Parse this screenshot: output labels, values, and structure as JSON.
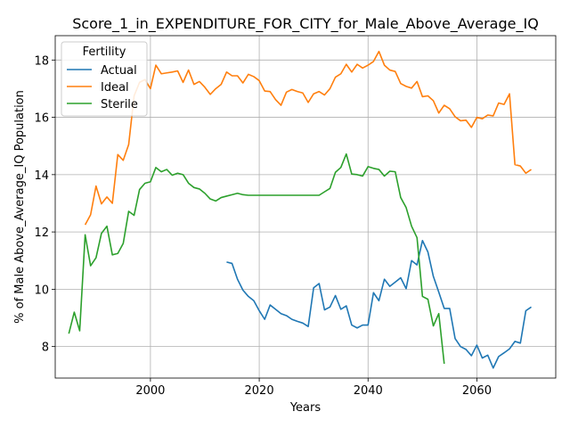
{
  "chart_data": {
    "type": "line",
    "title": "Score_1_in_EXPENDITURE_FOR_CITY_for_Male_Above_Average_IQ",
    "xlabel": "Years",
    "ylabel": "% of Male Above_Average_IQ Population",
    "xlim": [
      1982.5,
      2074.5
    ],
    "ylim": [
      6.9,
      18.85
    ],
    "xticks": [
      2000,
      2020,
      2040,
      2060
    ],
    "yticks": [
      8,
      10,
      12,
      14,
      16,
      18
    ],
    "grid": true,
    "legend": {
      "title": "Fertility",
      "placement": "top-left"
    },
    "series": [
      {
        "name": "Actual",
        "color": "#1f77b4",
        "x": [
          2014,
          2015,
          2016,
          2017,
          2018,
          2019,
          2020,
          2021,
          2022,
          2023,
          2024,
          2025,
          2026,
          2027,
          2028,
          2029,
          2030,
          2031,
          2032,
          2033,
          2034,
          2035,
          2036,
          2037,
          2038,
          2039,
          2040,
          2041,
          2042,
          2043,
          2044,
          2045,
          2046,
          2047,
          2048,
          2049,
          2050,
          2051,
          2052,
          2053,
          2054,
          2055,
          2056,
          2057,
          2058,
          2059,
          2060,
          2061,
          2062,
          2063,
          2064,
          2065,
          2066,
          2067,
          2068,
          2069,
          2070
        ],
        "y": [
          10.95,
          10.9,
          10.35,
          9.97,
          9.75,
          9.6,
          9.25,
          8.95,
          9.45,
          9.3,
          9.15,
          9.08,
          8.95,
          8.88,
          8.82,
          8.7,
          10.05,
          10.2,
          9.28,
          9.38,
          9.78,
          9.3,
          9.42,
          8.75,
          8.65,
          8.75,
          8.75,
          9.88,
          9.6,
          10.35,
          10.1,
          10.25,
          10.4,
          10.02,
          11.0,
          10.85,
          11.7,
          11.3,
          10.45,
          9.9,
          9.33,
          9.33,
          8.28,
          8.0,
          7.9,
          7.68,
          8.05,
          7.6,
          7.7,
          7.25,
          7.65,
          7.78,
          7.92,
          8.18,
          8.12,
          9.25,
          9.38
        ]
      },
      {
        "name": "Ideal",
        "color": "#ff7f0e",
        "x": [
          1988,
          1989,
          1990,
          1991,
          1992,
          1993,
          1994,
          1995,
          1996,
          1997,
          1998,
          1999,
          2000,
          2001,
          2002,
          2003,
          2004,
          2005,
          2006,
          2007,
          2008,
          2009,
          2010,
          2011,
          2012,
          2013,
          2014,
          2015,
          2016,
          2017,
          2018,
          2019,
          2020,
          2021,
          2022,
          2023,
          2024,
          2025,
          2026,
          2027,
          2028,
          2029,
          2030,
          2031,
          2032,
          2033,
          2034,
          2035,
          2036,
          2037,
          2038,
          2039,
          2040,
          2041,
          2042,
          2043,
          2044,
          2045,
          2046,
          2047,
          2048,
          2049,
          2050,
          2051,
          2052,
          2053,
          2054,
          2055,
          2056,
          2057,
          2058,
          2059,
          2060,
          2061,
          2062,
          2063,
          2064,
          2065,
          2066,
          2067,
          2068,
          2069,
          2070
        ],
        "y": [
          12.25,
          12.6,
          13.6,
          12.98,
          13.22,
          13.0,
          14.7,
          14.5,
          15.05,
          16.75,
          17.22,
          17.32,
          17.0,
          17.82,
          17.52,
          17.55,
          17.58,
          17.62,
          17.22,
          17.65,
          17.15,
          17.25,
          17.05,
          16.8,
          17.0,
          17.15,
          17.58,
          17.45,
          17.45,
          17.2,
          17.5,
          17.42,
          17.28,
          16.92,
          16.9,
          16.62,
          16.42,
          16.88,
          16.97,
          16.9,
          16.85,
          16.52,
          16.82,
          16.9,
          16.78,
          17.0,
          17.4,
          17.52,
          17.85,
          17.58,
          17.85,
          17.72,
          17.82,
          17.95,
          18.3,
          17.82,
          17.65,
          17.6,
          17.18,
          17.08,
          17.02,
          17.25,
          16.72,
          16.75,
          16.58,
          16.15,
          16.42,
          16.3,
          16.02,
          15.88,
          15.9,
          15.65,
          16.0,
          15.95,
          16.08,
          16.05,
          16.5,
          16.45,
          16.82,
          14.35,
          14.3,
          14.05,
          14.18
        ]
      },
      {
        "name": "Sterile",
        "color": "#2ca02c",
        "x": [
          1985,
          1986,
          1987,
          1988,
          1989,
          1990,
          1991,
          1992,
          1993,
          1994,
          1995,
          1996,
          1997,
          1998,
          1999,
          2000,
          2001,
          2002,
          2003,
          2004,
          2005,
          2006,
          2007,
          2008,
          2009,
          2010,
          2011,
          2012,
          2013,
          2014,
          2015,
          2016,
          2017,
          2018,
          2019,
          2020,
          2021,
          2022,
          2023,
          2024,
          2025,
          2026,
          2027,
          2028,
          2029,
          2030,
          2031,
          2032,
          2033,
          2034,
          2035,
          2036,
          2037,
          2038,
          2039,
          2040,
          2041,
          2042,
          2043,
          2044,
          2045,
          2046,
          2047,
          2048,
          2049,
          2050,
          2051,
          2052,
          2053,
          2054
        ],
        "y": [
          8.45,
          9.2,
          8.55,
          11.9,
          10.82,
          11.1,
          11.95,
          12.2,
          11.2,
          11.25,
          11.6,
          12.72,
          12.58,
          13.48,
          13.7,
          13.75,
          14.25,
          14.1,
          14.18,
          13.98,
          14.05,
          14.0,
          13.7,
          13.55,
          13.5,
          13.35,
          13.15,
          13.08,
          13.2,
          13.25,
          13.3,
          13.35,
          13.3,
          13.28,
          13.28,
          13.28,
          13.28,
          13.28,
          13.28,
          13.28,
          13.28,
          13.28,
          13.28,
          13.28,
          13.28,
          13.28,
          13.28,
          13.4,
          13.52,
          14.08,
          14.25,
          14.72,
          14.02,
          14.0,
          13.95,
          14.28,
          14.22,
          14.18,
          13.95,
          14.12,
          14.1,
          13.2,
          12.85,
          12.2,
          11.8,
          9.75,
          9.65,
          8.72,
          9.15,
          7.4
        ]
      }
    ]
  }
}
